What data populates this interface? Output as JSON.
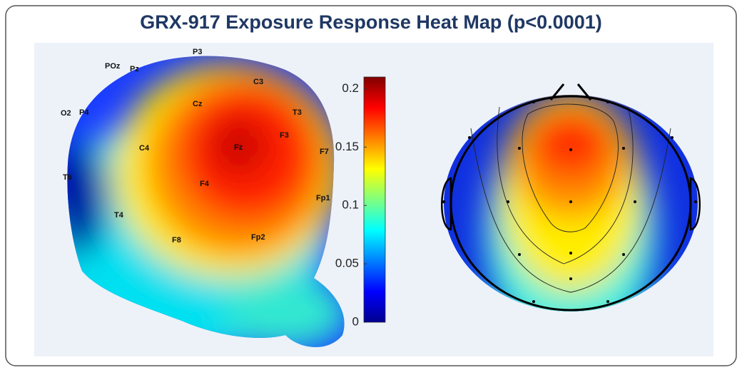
{
  "title": "GRX-917 Exposure Response Heat Map (p<0.0001)",
  "electrodes_3d": [
    "P3",
    "POz",
    "Pz",
    "C3",
    "Cz",
    "T3",
    "O2",
    "P4",
    "F3",
    "C4",
    "Fz",
    "F7",
    "T6",
    "F4",
    "Fp1",
    "T4",
    "F8",
    "Fp2"
  ],
  "colorbar": {
    "lim": [
      0,
      0.21
    ],
    "ticks": [
      0,
      0.05,
      0.1,
      0.15,
      0.2
    ]
  }
}
